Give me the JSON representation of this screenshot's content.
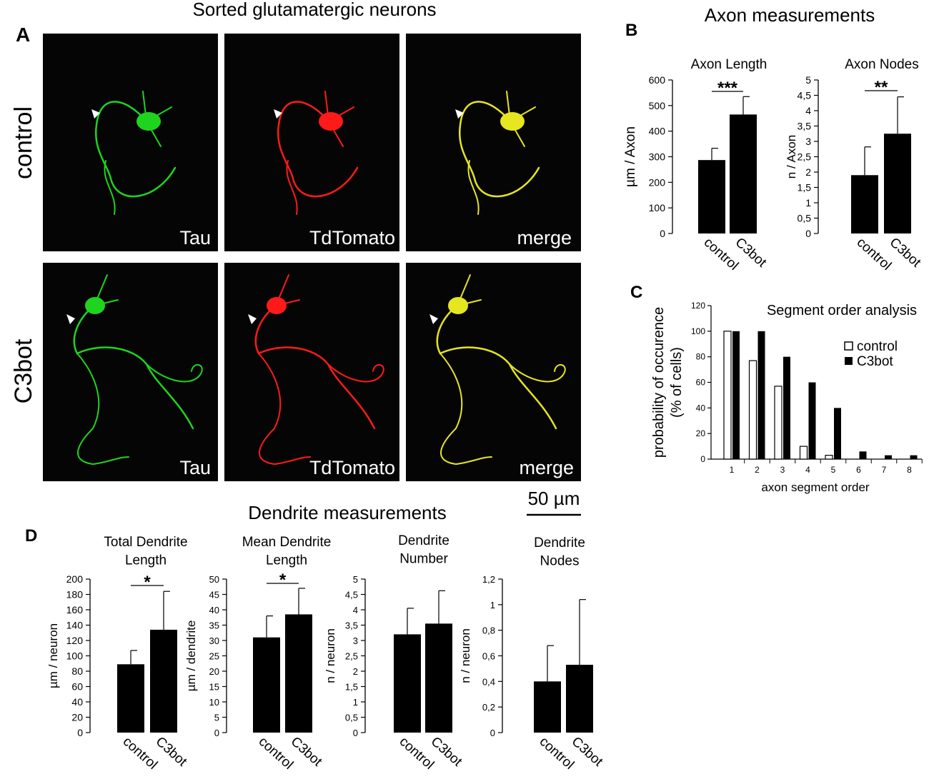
{
  "panel_a": {
    "letter": "A",
    "title": "Sorted glutamatergic neurons",
    "rows": [
      {
        "label": "control",
        "tiles": [
          {
            "label": "Tau",
            "color": "#1ed41e"
          },
          {
            "label": "TdTomato",
            "color": "#ff1a1a"
          },
          {
            "label": "merge",
            "color": "#e6e620"
          }
        ]
      },
      {
        "label": "C3bot",
        "tiles": [
          {
            "label": "Tau",
            "color": "#1ed41e"
          },
          {
            "label": "TdTomato",
            "color": "#ff1a1a"
          },
          {
            "label": "merge",
            "color": "#e6e620"
          }
        ]
      }
    ],
    "scalebar_label": "50 µm"
  },
  "panel_b": {
    "letter": "B",
    "title": "Axon measurements"
  },
  "panel_c": {
    "letter": "C"
  },
  "panel_d": {
    "letter": "D",
    "title": "Dendrite measurements"
  },
  "chart_data": [
    {
      "id": "axon_length",
      "type": "bar",
      "title": "Axon Length",
      "title2": "",
      "ylabel": "µm / Axon",
      "categories": [
        "control",
        "C3bot"
      ],
      "values": [
        287,
        465
      ],
      "errors": [
        46,
        70
      ],
      "ylim": [
        0,
        600
      ],
      "ytick_labels": [
        "0",
        "100",
        "200",
        "300",
        "400",
        "500",
        "600"
      ],
      "significance": "***"
    },
    {
      "id": "axon_nodes",
      "type": "bar",
      "title": "Axon Nodes",
      "title2": "",
      "ylabel": "n / Axon",
      "categories": [
        "control",
        "C3bot"
      ],
      "values": [
        1.9,
        3.25
      ],
      "errors": [
        0.92,
        1.2
      ],
      "ylim": [
        0,
        5
      ],
      "ytick_labels": [
        "0",
        "0,5",
        "1",
        "1,5",
        "2",
        "2,5",
        "3",
        "3,5",
        "4",
        "4,5",
        "5"
      ],
      "significance": "**"
    },
    {
      "id": "segment_order",
      "type": "bar",
      "title": "Segment order analysis",
      "xlabel": "axon segment order",
      "ylabel": "probability of occurence",
      "ylabel2": "(% of cells)",
      "categories": [
        "1",
        "2",
        "3",
        "4",
        "5",
        "6",
        "7",
        "8"
      ],
      "series": [
        {
          "name": "control",
          "values": [
            100,
            77,
            57,
            10,
            3,
            0,
            0,
            0
          ]
        },
        {
          "name": "C3bot",
          "values": [
            100,
            100,
            80,
            60,
            40,
            6,
            3,
            3
          ]
        }
      ],
      "ylim": [
        0,
        120
      ],
      "ytick_labels": [
        "0",
        "20",
        "40",
        "60",
        "80",
        "100",
        "120"
      ],
      "legend": "top-right"
    },
    {
      "id": "total_dendrite_length",
      "type": "bar",
      "title": "Total Dendrite",
      "title2": "Length",
      "ylabel": "µm / neuron",
      "categories": [
        "control",
        "C3bot"
      ],
      "values": [
        89,
        134
      ],
      "errors": [
        18,
        50
      ],
      "ylim": [
        0,
        200
      ],
      "ytick_labels": [
        "0",
        "20",
        "40",
        "60",
        "80",
        "100",
        "120",
        "140",
        "160",
        "180",
        "200"
      ],
      "significance": "*"
    },
    {
      "id": "mean_dendrite_length",
      "type": "bar",
      "title": "Mean Dendrite",
      "title2": "Length",
      "ylabel": "µm / dendrite",
      "categories": [
        "control",
        "C3bot"
      ],
      "values": [
        31,
        38.5
      ],
      "errors": [
        7,
        8.5
      ],
      "ylim": [
        0,
        50
      ],
      "ytick_labels": [
        "0",
        "5",
        "10",
        "15",
        "20",
        "25",
        "30",
        "35",
        "40",
        "45",
        "50"
      ],
      "significance": "*"
    },
    {
      "id": "dendrite_number",
      "type": "bar",
      "title": "Dendrite",
      "title2": "Number",
      "ylabel": "n / neuron",
      "categories": [
        "control",
        "C3bot"
      ],
      "values": [
        3.2,
        3.55
      ],
      "errors": [
        0.85,
        1.07
      ],
      "ylim": [
        0,
        5
      ],
      "ytick_labels": [
        "0",
        "0,5",
        "1",
        "1,5",
        "2",
        "2,5",
        "3",
        "3,5",
        "4",
        "4,5",
        "5"
      ],
      "significance": ""
    },
    {
      "id": "dendrite_nodes",
      "type": "bar",
      "title": "Dendrite",
      "title2": "Nodes",
      "ylabel": "n / neuron",
      "categories": [
        "control",
        "C3bot"
      ],
      "values": [
        0.4,
        0.53
      ],
      "errors": [
        0.28,
        0.51
      ],
      "ylim": [
        0,
        1.2
      ],
      "ytick_labels": [
        "0",
        "0,2",
        "0,4",
        "0,6",
        "0,8",
        "1",
        "1,2"
      ],
      "significance": ""
    }
  ]
}
